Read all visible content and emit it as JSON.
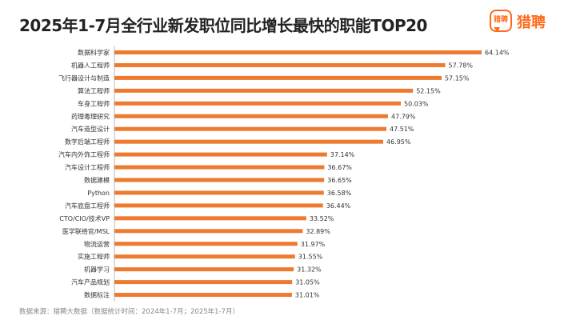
{
  "page": {
    "title": "2025年1-7月全行业新发职位同比增长最快的职能TOP20",
    "source": "数据来源：猎聘大数据（数据统计时间：2024年1-7月；2025年1-7月）"
  },
  "logo": {
    "box_text": "猎聘",
    "text": "猎聘",
    "color": "#ff6a1a"
  },
  "chart_data": {
    "type": "bar",
    "orientation": "horizontal",
    "title": "2025年1-7月全行业新发职位同比增长最快的职能TOP20",
    "categories": [
      "数据科学家",
      "机器人工程师",
      "飞行器设计与制造",
      "算法工程师",
      "车身工程师",
      "药理毒理研究",
      "汽车造型设计",
      "数字后端工程师",
      "汽车内外饰工程师",
      "汽车设计工程师",
      "数据建模",
      "Python",
      "汽车底盘工程师",
      "CTO/CIO/技术VP",
      "医学联络官/MSL",
      "物流运营",
      "实施工程师",
      "机器学习",
      "汽车产品规划",
      "数据标注"
    ],
    "values": [
      64.14,
      57.78,
      57.15,
      52.15,
      50.03,
      47.79,
      47.51,
      46.95,
      37.14,
      36.67,
      36.65,
      36.58,
      36.44,
      33.52,
      32.89,
      31.97,
      31.55,
      31.32,
      31.05,
      31.01
    ],
    "labels": [
      "64.14%",
      "57.78%",
      "57.15%",
      "52.15%",
      "50.03%",
      "47.79%",
      "47.51%",
      "46.95%",
      "37.14%",
      "36.67%",
      "36.65%",
      "36.58%",
      "36.44%",
      "33.52%",
      "32.89%",
      "31.97%",
      "31.55%",
      "31.32%",
      "31.05%",
      "31.01%"
    ],
    "unit": "%",
    "xlim": [
      0,
      64.14
    ],
    "grid": false,
    "legend": "none",
    "bar_color": "#ee7a30"
  }
}
